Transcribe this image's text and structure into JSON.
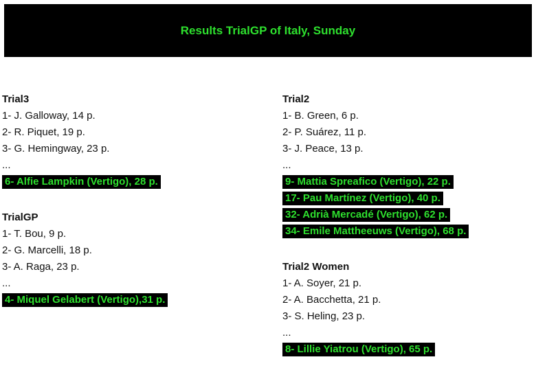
{
  "title": "Results TrialGP of Italy, Sunday",
  "colors": {
    "highlight_bg": "#000000",
    "highlight_text": "#2ee02e"
  },
  "left": [
    {
      "title": "Trial3",
      "rows": [
        "1- J. Galloway, 14 p.",
        "2- R. Piquet, 19 p.",
        "3- G. Hemingway, 23 p.",
        "..."
      ],
      "highlights": [
        "6- Alfie Lampkin (Vertigo), 28 p."
      ]
    },
    {
      "title": "TrialGP",
      "rows": [
        "1- T. Bou, 9 p.",
        "2- G. Marcelli, 18 p.",
        "3- A. Raga, 23 p.",
        "..."
      ],
      "highlights": [
        "4- Miquel Gelabert (Vertigo),31 p."
      ]
    }
  ],
  "right": [
    {
      "title": "Trial2",
      "rows": [
        "1- B. Green, 6 p.",
        "2- P. Suárez, 11 p.",
        "3- J. Peace, 13 p.",
        "..."
      ],
      "highlights": [
        "9- Mattia Spreafico (Vertigo), 22 p.",
        "17- Pau Martínez (Vertigo), 40 p.",
        "32- Adrià Mercadé (Vertigo), 62 p.",
        "34- Emile Mattheeuws (Vertigo), 68 p."
      ]
    },
    {
      "title": "Trial2 Women",
      "rows": [
        "1- A. Soyer, 21 p.",
        "2- A. Bacchetta, 21 p.",
        "3- S. Heling, 23 p.",
        "..."
      ],
      "highlights": [
        "8- Lillie Yiatrou (Vertigo), 65 p."
      ]
    }
  ]
}
